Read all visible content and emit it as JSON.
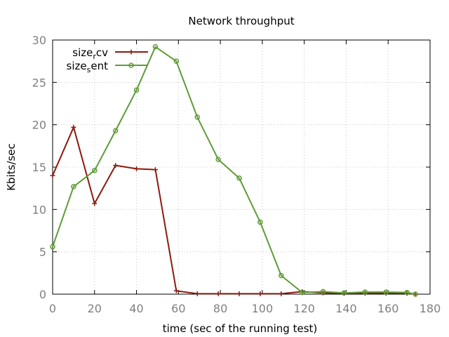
{
  "chart_data": {
    "type": "line",
    "title": "Network throughput",
    "xlabel": "time (sec of the running test)",
    "ylabel": "Kbits/sec",
    "xlim": [
      0,
      180
    ],
    "ylim": [
      0,
      30
    ],
    "xticks": [
      0,
      20,
      40,
      60,
      80,
      100,
      120,
      140,
      160,
      180
    ],
    "yticks": [
      0,
      5,
      10,
      15,
      20,
      25,
      30
    ],
    "grid": true,
    "legend_position": "top-left",
    "series": [
      {
        "name": "size_rcv",
        "legend_base": "size",
        "legend_sub": "r",
        "legend_rest": "cv",
        "color": "#8b1a0e",
        "marker": "plus",
        "x": [
          0,
          10,
          20,
          30,
          40,
          49,
          59,
          69,
          79,
          89,
          99,
          109,
          119,
          129,
          139,
          149,
          159,
          169,
          173
        ],
        "values": [
          14.0,
          19.7,
          10.7,
          15.2,
          14.8,
          14.7,
          0.4,
          0.05,
          0.05,
          0.05,
          0.05,
          0.05,
          0.3,
          0.15,
          0.1,
          0.1,
          0.1,
          0.1,
          0.0
        ]
      },
      {
        "name": "size_sent",
        "legend_base": "size",
        "legend_sub": "s",
        "legend_rest": "ent",
        "color": "#5e9c36",
        "marker": "circle",
        "x": [
          0,
          10,
          20,
          30,
          40,
          49,
          59,
          69,
          79,
          89,
          99,
          109,
          119,
          129,
          139,
          149,
          159,
          169,
          173
        ],
        "values": [
          5.6,
          12.7,
          14.6,
          19.3,
          24.1,
          29.2,
          27.5,
          20.9,
          15.9,
          13.7,
          8.5,
          2.2,
          0.2,
          0.3,
          0.15,
          0.25,
          0.25,
          0.2,
          0.0
        ]
      }
    ]
  }
}
